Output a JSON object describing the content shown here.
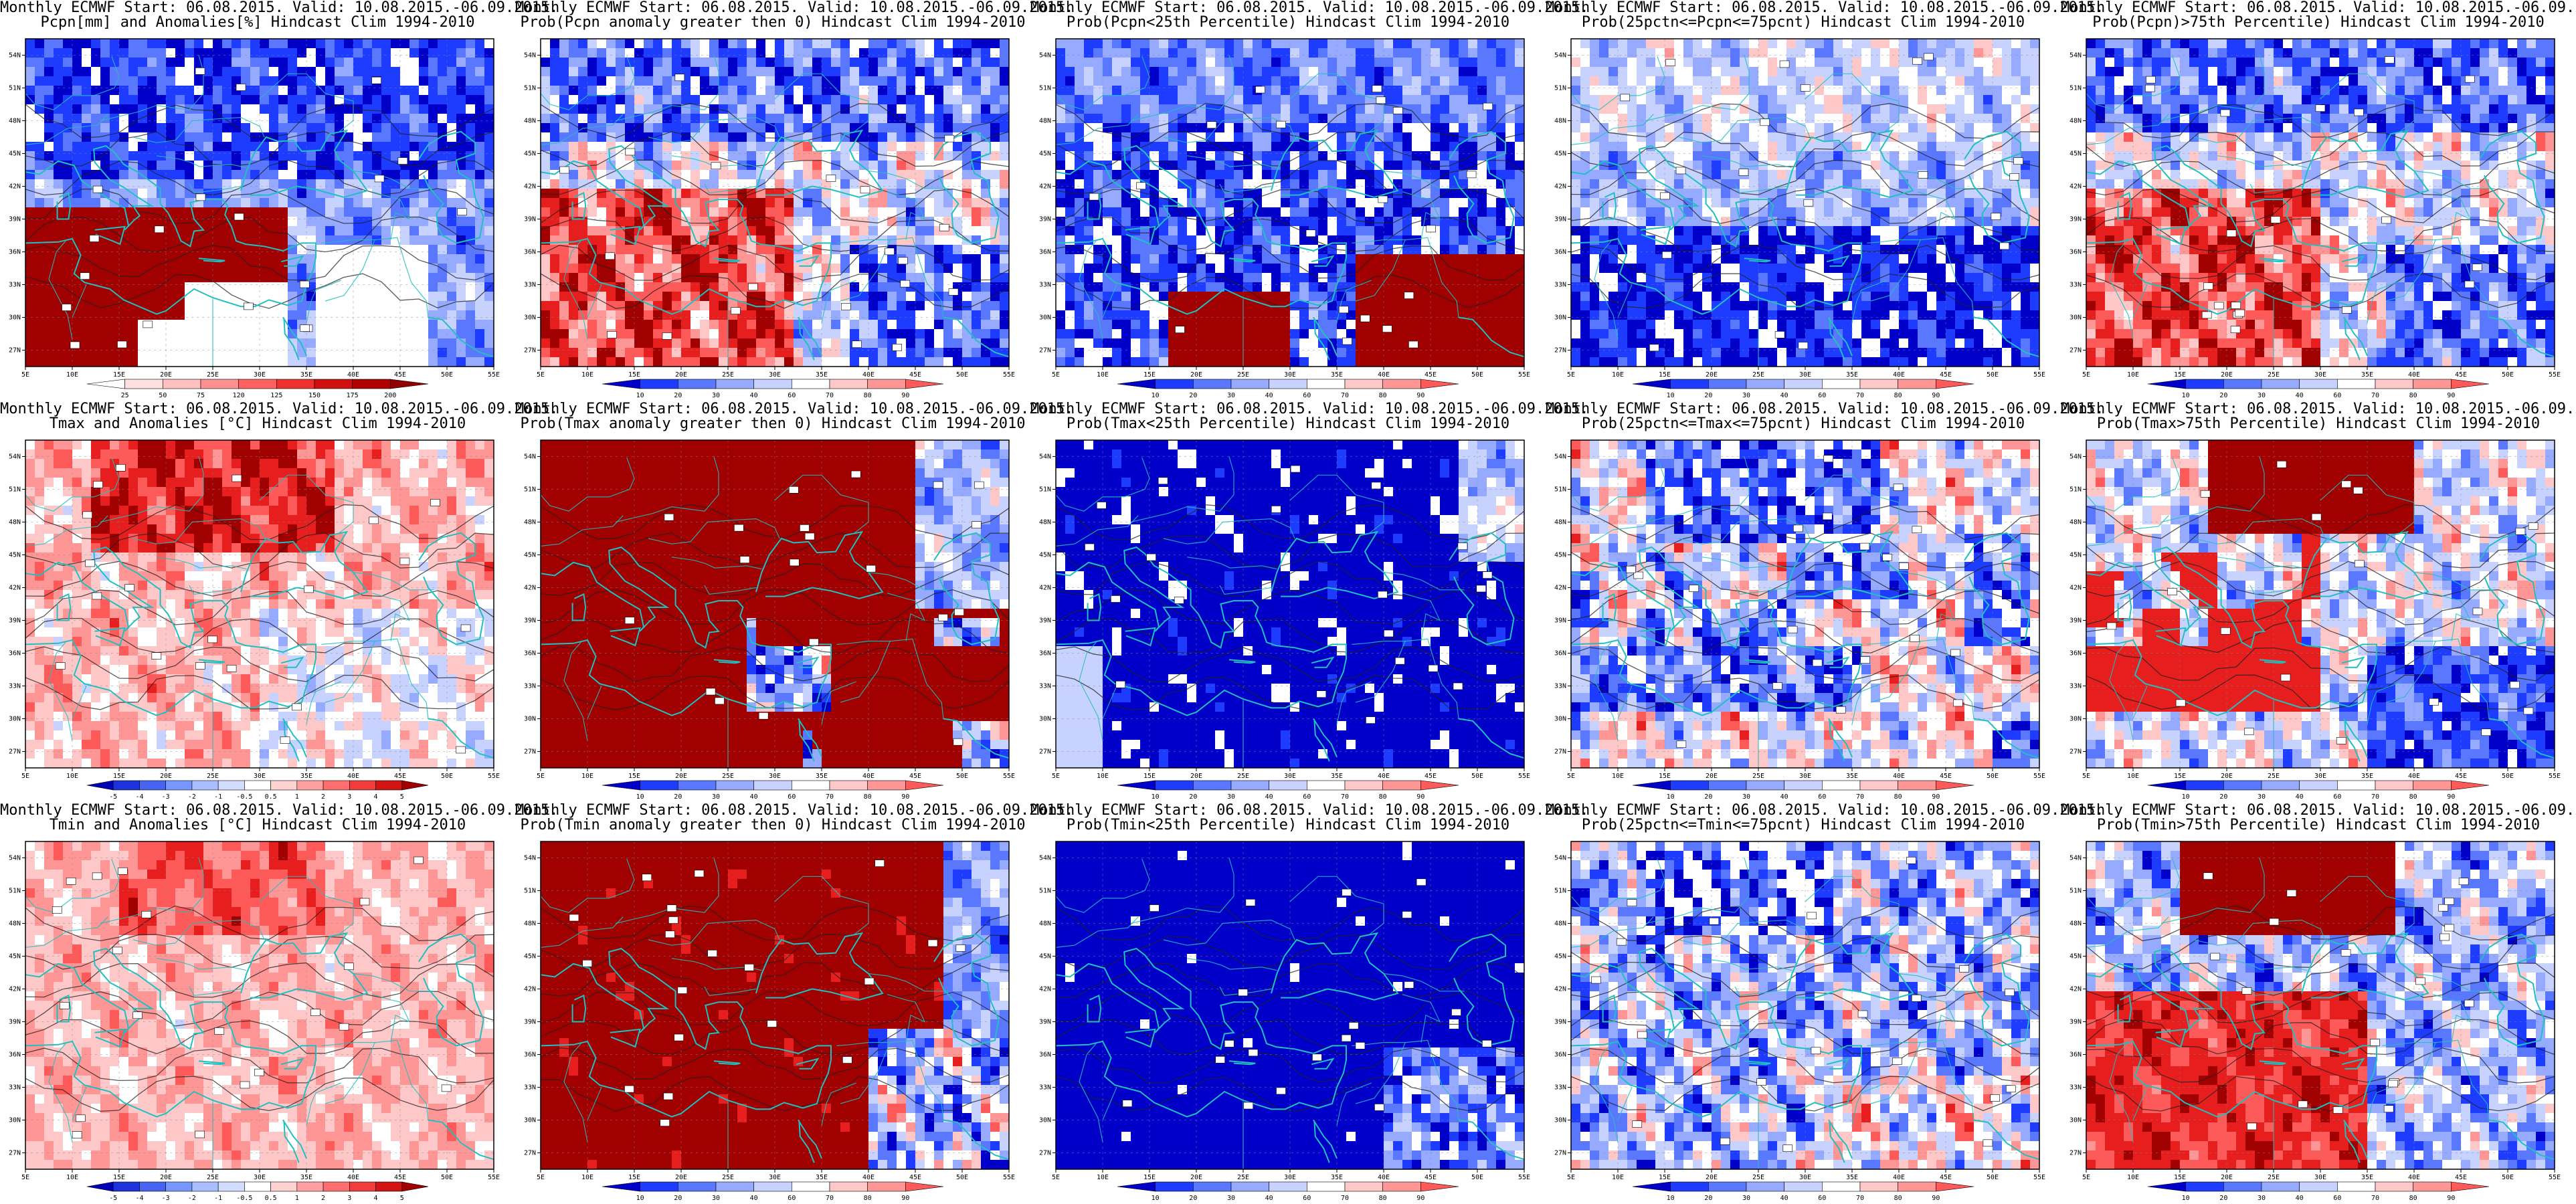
{
  "title_line1": "Monthly ECMWF Start: 06.08.2015. Valid: 10.08.2015.-06.09.2015.",
  "lon_ticks": [
    "5E",
    "10E",
    "15E",
    "20E",
    "25E",
    "30E",
    "35E",
    "40E",
    "45E",
    "50E",
    "55E"
  ],
  "lat_ticks": [
    "54N",
    "51N",
    "48N",
    "45N",
    "42N",
    "39N",
    "36N",
    "33N",
    "30N",
    "27N"
  ],
  "colorbars": {
    "pcpn": [
      "25",
      "50",
      "75",
      "120",
      "125",
      "150",
      "175",
      "200"
    ],
    "anom": [
      "-5",
      "-4",
      "-3",
      "-2",
      "-1",
      "-0.5",
      "0.5",
      "1",
      "2",
      "3",
      "4",
      "5"
    ],
    "prob": [
      "10",
      "20",
      "30",
      "40",
      "60",
      "70",
      "80",
      "90"
    ]
  },
  "colors": {
    "prob_scale": [
      "#0000c8",
      "#1e3cff",
      "#5a78ff",
      "#96aaff",
      "#c8d2ff",
      "#ffffff",
      "#ffc8c8",
      "#ff9696",
      "#ff5a5a",
      "#e61e1e",
      "#a00000"
    ],
    "coast": "#20c0c0",
    "contour": "#222222"
  },
  "panels": [
    {
      "row": 0,
      "col": 0,
      "line2": "Pcpn[mm] and Anomalies[%] Hindcast Clim 1994-2010",
      "cbar": "pcpn"
    },
    {
      "row": 0,
      "col": 1,
      "line2": "Prob(Pcpn anomaly greater then 0) Hindcast Clim 1994-2010",
      "cbar": "prob"
    },
    {
      "row": 0,
      "col": 2,
      "line2": "Prob(Pcpn<25th Percentile) Hindcast Clim 1994-2010",
      "cbar": "prob"
    },
    {
      "row": 0,
      "col": 3,
      "line2": "Prob(25pctn<=Pcpn<=75pcnt) Hindcast Clim 1994-2010",
      "cbar": "prob"
    },
    {
      "row": 0,
      "col": 4,
      "line2": "Prob(Pcpn)>75th Percentile) Hindcast Clim 1994-2010",
      "cbar": "prob"
    },
    {
      "row": 1,
      "col": 0,
      "line2": "Tmax and Anomalies [°C] Hindcast Clim 1994-2010",
      "cbar": "anom"
    },
    {
      "row": 1,
      "col": 1,
      "line2": "Prob(Tmax anomaly greater then 0) Hindcast Clim 1994-2010",
      "cbar": "prob"
    },
    {
      "row": 1,
      "col": 2,
      "line2": "Prob(Tmax<25th Percentile) Hindcast Clim 1994-2010",
      "cbar": "prob"
    },
    {
      "row": 1,
      "col": 3,
      "line2": "Prob(25pctn<=Tmax<=75pcnt) Hindcast Clim 1994-2010",
      "cbar": "prob"
    },
    {
      "row": 1,
      "col": 4,
      "line2": "Prob(Tmax>75th Percentile) Hindcast Clim 1994-2010",
      "cbar": "prob"
    },
    {
      "row": 2,
      "col": 0,
      "line2": "Tmin and Anomalies [°C] Hindcast Clim 1994-2010",
      "cbar": "anom"
    },
    {
      "row": 2,
      "col": 1,
      "line2": "Prob(Tmin anomaly greater then 0) Hindcast Clim 1994-2010",
      "cbar": "prob"
    },
    {
      "row": 2,
      "col": 2,
      "line2": "Prob(Tmin<25th Percentile) Hindcast Clim 1994-2010",
      "cbar": "prob"
    },
    {
      "row": 2,
      "col": 3,
      "line2": "Prob(25pctn<=Tmin<=75pcnt) Hindcast Clim 1994-2010",
      "cbar": "prob"
    },
    {
      "row": 2,
      "col": 4,
      "line2": "Prob(Tmin>75th Percentile) Hindcast Clim 1994-2010",
      "cbar": "prob"
    }
  ]
}
